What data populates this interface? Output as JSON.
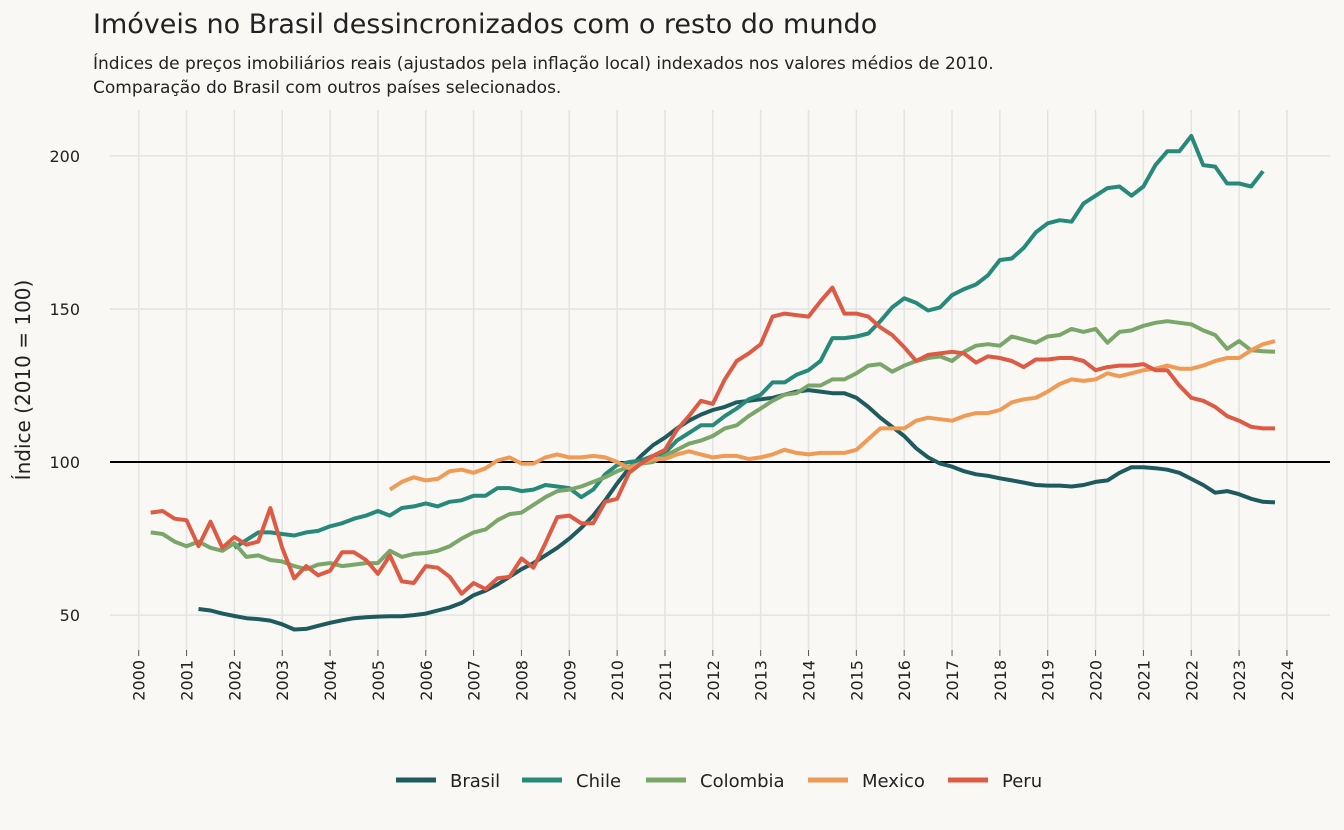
{
  "chart_data": {
    "type": "line",
    "title": "Imóveis no Brasil dessincronizados com o resto do mundo",
    "subtitle": [
      "Índices de preços imobiliários reais (ajustados pela inflação local) indexados nos valores médios de 2010.",
      "Comparação do Brasil com outros países selecionados."
    ],
    "y_label": "Índice (2010 = 100)",
    "xlim": [
      1999.4,
      2024.9
    ],
    "xticks": [
      2000,
      2001,
      2002,
      2003,
      2004,
      2005,
      2006,
      2007,
      2008,
      2009,
      2010,
      2011,
      2012,
      2013,
      2014,
      2015,
      2016,
      2017,
      2018,
      2019,
      2020,
      2021,
      2022,
      2023,
      2024
    ],
    "ylim": [
      38.6,
      215
    ],
    "yticks": [
      50,
      100,
      150,
      200
    ],
    "hline": 100,
    "grid": true,
    "legend": "bottom",
    "x": [
      2000.25,
      2000.5,
      2000.75,
      2001,
      2001.25,
      2001.5,
      2001.75,
      2002,
      2002.25,
      2002.5,
      2002.75,
      2003,
      2003.25,
      2003.5,
      2003.75,
      2004,
      2004.25,
      2004.5,
      2004.75,
      2005,
      2005.25,
      2005.5,
      2005.75,
      2006,
      2006.25,
      2006.5,
      2006.75,
      2007,
      2007.25,
      2007.5,
      2007.75,
      2008,
      2008.25,
      2008.5,
      2008.75,
      2009,
      2009.25,
      2009.5,
      2009.75,
      2010,
      2010.25,
      2010.5,
      2010.75,
      2011,
      2011.25,
      2011.5,
      2011.75,
      2012,
      2012.25,
      2012.5,
      2012.75,
      2013,
      2013.25,
      2013.5,
      2013.75,
      2014,
      2014.25,
      2014.5,
      2014.75,
      2015,
      2015.25,
      2015.5,
      2015.75,
      2016,
      2016.25,
      2016.5,
      2016.75,
      2017,
      2017.25,
      2017.5,
      2017.75,
      2018,
      2018.25,
      2018.5,
      2018.75,
      2019,
      2019.25,
      2019.5,
      2019.75,
      2020,
      2020.25,
      2020.5,
      2020.75,
      2021,
      2021.25,
      2021.5,
      2021.75,
      2022,
      2022.25,
      2022.5,
      2022.75,
      2023,
      2023.25,
      2023.5,
      2023.75
    ],
    "series": [
      {
        "name": "Brasil",
        "color": "#1f5a5e",
        "values": [
          null,
          null,
          null,
          null,
          52,
          51.5,
          50.5,
          49.7,
          49,
          48.7,
          48.2,
          47,
          45.3,
          45.5,
          46.5,
          47.5,
          48.3,
          49,
          49.3,
          49.5,
          49.6,
          49.6,
          50,
          50.5,
          51.5,
          52.5,
          54,
          56.5,
          58,
          60,
          62.5,
          65,
          67,
          69.5,
          72,
          75,
          78.5,
          82.5,
          87.5,
          93,
          98,
          102,
          105.5,
          108,
          111,
          113.5,
          115.5,
          117,
          118,
          119.5,
          120,
          120.5,
          121,
          122,
          123,
          123.5,
          123,
          122.5,
          122.5,
          121,
          118,
          114.5,
          111.5,
          108.5,
          104.5,
          101.5,
          99.5,
          98.5,
          97,
          96,
          95.5,
          94.7,
          94,
          93.3,
          92.5,
          92.3,
          92.3,
          92,
          92.5,
          93.5,
          94,
          96.5,
          98.3,
          98.3,
          98,
          97.5,
          96.5,
          94.5,
          92.5,
          90,
          90.5,
          89.5,
          88,
          87,
          86.8
        ]
      },
      {
        "name": "Chile",
        "color": "#26897a",
        "values": [
          null,
          null,
          null,
          null,
          null,
          null,
          null,
          72,
          74.5,
          77,
          77,
          76.5,
          76,
          77,
          77.5,
          79,
          80,
          81.5,
          82.5,
          84,
          82.5,
          85,
          85.5,
          86.5,
          85.5,
          87,
          87.5,
          89,
          89,
          91.5,
          91.5,
          90.5,
          91,
          92.5,
          92,
          91.5,
          88.5,
          91,
          96,
          99,
          100,
          100.5,
          102,
          103,
          107,
          109.5,
          112,
          112,
          115,
          117.5,
          120.5,
          122,
          126,
          126,
          128.5,
          130,
          133,
          140.5,
          140.5,
          141,
          142,
          146,
          150.5,
          153.5,
          152,
          149.5,
          150.5,
          154.5,
          156.5,
          158,
          161,
          166,
          166.5,
          170,
          175,
          178,
          179,
          178.5,
          184.5,
          187,
          189.5,
          190,
          187,
          190,
          197,
          201.5,
          201.5,
          206.5,
          197,
          196.5,
          191,
          191,
          190,
          195,
          null
        ]
      },
      {
        "name": "Colombia",
        "color": "#7aa66a",
        "values": [
          77,
          76.5,
          74,
          72.5,
          74,
          72,
          71,
          73.5,
          69,
          69.5,
          68,
          67.5,
          66,
          65,
          66.5,
          67,
          66,
          66.5,
          67,
          67,
          71,
          69,
          70,
          70.3,
          71,
          72.5,
          75,
          77,
          78,
          81,
          83,
          83.5,
          86,
          88.5,
          90.5,
          91,
          92,
          93.5,
          95,
          97,
          98.5,
          99.5,
          100,
          102,
          104,
          106,
          107,
          108.5,
          111,
          112,
          115,
          117.5,
          120,
          122,
          122.5,
          125,
          125,
          127,
          127,
          129,
          131.5,
          132,
          129.5,
          131.5,
          133,
          134,
          134.5,
          133,
          136,
          138,
          138.5,
          138,
          141,
          140,
          139,
          141,
          141.5,
          143.5,
          142.5,
          143.5,
          139,
          142.5,
          143,
          144.5,
          145.5,
          146,
          145.5,
          145,
          143,
          141.5,
          137,
          139.5,
          136.5,
          136.2,
          136
        ]
      },
      {
        "name": "Mexico",
        "color": "#ef9a55",
        "values": [
          null,
          null,
          null,
          null,
          null,
          null,
          null,
          null,
          null,
          null,
          null,
          null,
          null,
          null,
          null,
          null,
          null,
          null,
          null,
          null,
          91,
          93.5,
          95,
          94,
          94.5,
          97,
          97.5,
          96.5,
          98,
          100.5,
          101.5,
          99.5,
          99.5,
          101.5,
          102.5,
          101.5,
          101.5,
          102,
          101.5,
          100,
          98,
          99.5,
          101,
          101,
          102.5,
          103.5,
          102.5,
          101.5,
          102,
          102,
          101,
          101.5,
          102.5,
          104,
          103,
          102.5,
          103,
          103,
          103,
          104,
          107.5,
          111,
          111,
          111,
          113.5,
          114.5,
          114,
          113.5,
          115,
          116,
          116,
          117,
          119.5,
          120.5,
          121,
          123,
          125.5,
          127,
          126.5,
          127,
          129,
          128,
          129,
          130,
          130.5,
          131.5,
          130.5,
          130.5,
          131.5,
          133,
          134,
          134,
          136.5,
          138.5,
          139.5
        ]
      },
      {
        "name": "Peru",
        "color": "#dd5b45",
        "values": [
          83.5,
          84,
          81.5,
          81,
          72.5,
          80.5,
          72,
          75.5,
          73,
          74,
          85,
          72,
          62,
          66,
          63,
          64.5,
          70.5,
          70.5,
          68,
          63.5,
          69.5,
          61,
          60.5,
          66,
          65.5,
          62.5,
          57,
          60.5,
          58.5,
          62,
          62.5,
          68.5,
          65.5,
          73.5,
          82,
          82.5,
          80,
          80,
          87,
          88,
          96.5,
          99.5,
          102,
          104,
          110.5,
          115,
          120,
          119,
          127,
          133,
          135.5,
          138.5,
          147.5,
          148.5,
          148,
          147.5,
          152.5,
          157,
          148.5,
          148.5,
          147.5,
          144,
          141.5,
          137.5,
          133,
          135,
          135.5,
          136,
          135.5,
          132.5,
          134.5,
          134,
          133,
          131,
          133.5,
          133.5,
          134,
          134,
          133,
          130,
          131,
          131.5,
          131.5,
          132,
          130,
          130,
          125,
          121,
          120,
          118,
          115,
          113.5,
          111.5,
          111,
          111
        ]
      }
    ]
  }
}
